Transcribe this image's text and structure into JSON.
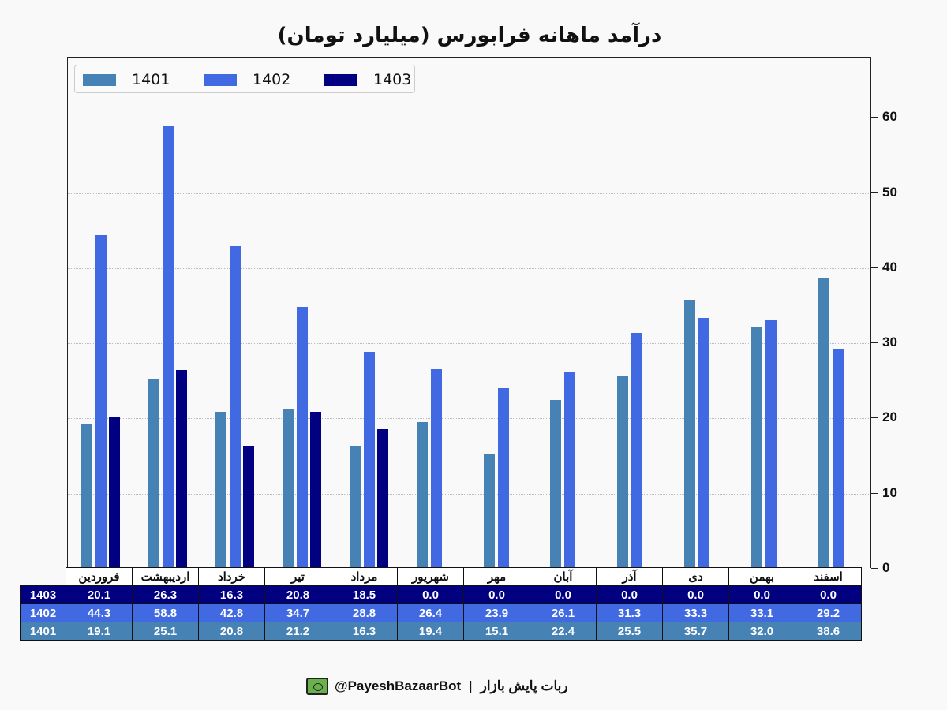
{
  "title": "درآمد ماهانه فرابورس (میلیارد تومان)",
  "legend": [
    {
      "label": "1401",
      "color": "#4682b4"
    },
    {
      "label": "1402",
      "color": "#4169e1"
    },
    {
      "label": "1403",
      "color": "#000080"
    }
  ],
  "y_ticks": [
    "0",
    "10",
    "20",
    "30",
    "40",
    "50",
    "60"
  ],
  "table": {
    "months": [
      "فروردین",
      "اردیبهشت",
      "خرداد",
      "تیر",
      "مرداد",
      "شهریور",
      "مهر",
      "آبان",
      "آذر",
      "دی",
      "بهمن",
      "اسفند"
    ],
    "rows": [
      {
        "label": "1403",
        "values": [
          "20.1",
          "26.3",
          "16.3",
          "20.8",
          "18.5",
          "0.0",
          "0.0",
          "0.0",
          "0.0",
          "0.0",
          "0.0",
          "0.0"
        ]
      },
      {
        "label": "1402",
        "values": [
          "44.3",
          "58.8",
          "42.8",
          "34.7",
          "28.8",
          "26.4",
          "23.9",
          "26.1",
          "31.3",
          "33.3",
          "33.1",
          "29.2"
        ]
      },
      {
        "label": "1401",
        "values": [
          "19.1",
          "25.1",
          "20.8",
          "21.2",
          "16.3",
          "19.4",
          "15.1",
          "22.4",
          "25.5",
          "35.7",
          "32.0",
          "38.6"
        ]
      }
    ]
  },
  "footer": {
    "handle": "@PayeshBazaarBot",
    "separator": "|",
    "name": "ربات پایش بازار",
    "icon": "tv-bot-icon"
  },
  "chart_data": {
    "type": "bar",
    "title": "درآمد ماهانه فرابورس (میلیارد تومان)",
    "xlabel": "",
    "ylabel": "",
    "ylim": [
      0,
      68
    ],
    "y_axis_position": "right",
    "grid": "horizontal dotted",
    "legend_position": "upper left",
    "categories": [
      "فروردین",
      "اردیبهشت",
      "خرداد",
      "تیر",
      "مرداد",
      "شهریور",
      "مهر",
      "آبان",
      "آذر",
      "دی",
      "بهمن",
      "اسفند"
    ],
    "series": [
      {
        "name": "1401",
        "color": "#4682b4",
        "values": [
          19.1,
          25.1,
          20.8,
          21.2,
          16.3,
          19.4,
          15.1,
          22.4,
          25.5,
          35.7,
          32.0,
          38.6
        ]
      },
      {
        "name": "1402",
        "color": "#4169e1",
        "values": [
          44.3,
          58.8,
          42.8,
          34.7,
          28.8,
          26.4,
          23.9,
          26.1,
          31.3,
          33.3,
          33.1,
          29.2
        ]
      },
      {
        "name": "1403",
        "color": "#000080",
        "values": [
          20.1,
          26.3,
          16.3,
          20.8,
          18.5,
          0.0,
          0.0,
          0.0,
          0.0,
          0.0,
          0.0,
          0.0
        ]
      }
    ]
  }
}
